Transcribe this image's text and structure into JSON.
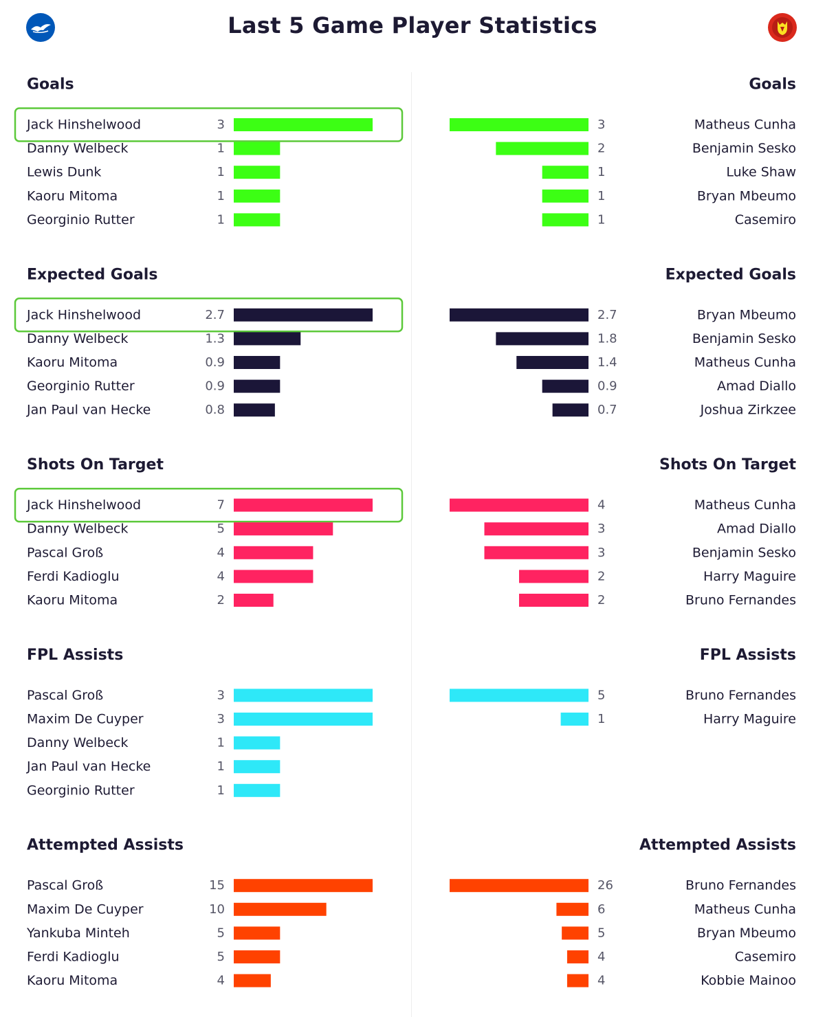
{
  "title": "Last 5 Game Player Statistics",
  "home_crest": {
    "icon": "seagull-crest-icon",
    "color": "#0057b8"
  },
  "away_crest": {
    "icon": "devil-crest-icon",
    "color": "#da291c"
  },
  "highlight_color": "#5cc93a",
  "chart_data": [
    {
      "type": "bar",
      "title": "Goals",
      "color": "#3cff14",
      "home": {
        "players": [
          "Jack Hinshelwood",
          "Danny Welbeck",
          "Lewis Dunk",
          "Kaoru Mitoma",
          "Georginio Rutter"
        ],
        "values": [
          "3",
          "1",
          "1",
          "1",
          "1"
        ],
        "highlight": 0
      },
      "away": {
        "players": [
          "Matheus Cunha",
          "Benjamin Sesko",
          "Luke Shaw",
          "Bryan Mbeumo",
          "Casemiro"
        ],
        "values": [
          "3",
          "2",
          "1",
          "1",
          "1"
        ]
      }
    },
    {
      "type": "bar",
      "title": "Expected Goals",
      "color": "#1b1638",
      "home": {
        "players": [
          "Jack Hinshelwood",
          "Danny Welbeck",
          "Kaoru Mitoma",
          "Georginio Rutter",
          "Jan Paul van Hecke"
        ],
        "values": [
          "2.7",
          "1.3",
          "0.9",
          "0.9",
          "0.8"
        ],
        "highlight": 0
      },
      "away": {
        "players": [
          "Bryan Mbeumo",
          "Benjamin Sesko",
          "Matheus Cunha",
          "Amad Diallo",
          "Joshua Zirkzee"
        ],
        "values": [
          "2.7",
          "1.8",
          "1.4",
          "0.9",
          "0.7"
        ]
      }
    },
    {
      "type": "bar",
      "title": "Shots On Target",
      "color": "#ff2361",
      "home": {
        "players": [
          "Jack Hinshelwood",
          "Danny Welbeck",
          "Pascal Groß",
          "Ferdi Kadioglu",
          "Kaoru Mitoma"
        ],
        "values": [
          "7",
          "5",
          "4",
          "4",
          "2"
        ],
        "highlight": 0
      },
      "away": {
        "players": [
          "Matheus Cunha",
          "Amad Diallo",
          "Benjamin Sesko",
          "Harry Maguire",
          "Bruno Fernandes"
        ],
        "values": [
          "4",
          "3",
          "3",
          "2",
          "2"
        ]
      }
    },
    {
      "type": "bar",
      "title": "FPL Assists",
      "color": "#2ee8f8",
      "home": {
        "players": [
          "Pascal Groß",
          "Maxim De Cuyper",
          "Danny Welbeck",
          "Jan Paul van Hecke",
          "Georginio Rutter"
        ],
        "values": [
          "3",
          "3",
          "1",
          "1",
          "1"
        ]
      },
      "away": {
        "players": [
          "Bruno Fernandes",
          "Harry Maguire"
        ],
        "values": [
          "5",
          "1"
        ]
      }
    },
    {
      "type": "bar",
      "title": "Attempted Assists",
      "color": "#ff4200",
      "home": {
        "players": [
          "Pascal Groß",
          "Maxim De Cuyper",
          "Yankuba Minteh",
          "Ferdi Kadioglu",
          "Kaoru Mitoma"
        ],
        "values": [
          "15",
          "10",
          "5",
          "5",
          "4"
        ]
      },
      "away": {
        "players": [
          "Bruno Fernandes",
          "Matheus Cunha",
          "Bryan Mbeumo",
          "Casemiro",
          "Kobbie Mainoo"
        ],
        "values": [
          "26",
          "6",
          "5",
          "4",
          "4"
        ]
      }
    }
  ]
}
